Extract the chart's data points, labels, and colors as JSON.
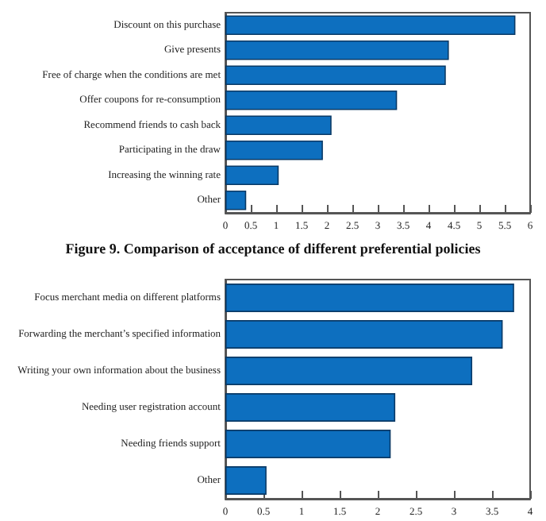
{
  "chart_data": [
    {
      "type": "bar",
      "orientation": "horizontal",
      "title": "Figure 9. Comparison of acceptance of different preferential policies",
      "categories": [
        "Discount on this purchase",
        "Give presents",
        "Free of charge when the conditions are met",
        "Offer coupons for re-consumption",
        "Recommend friends to cash back",
        "Participating in the draw",
        "Increasing the winning rate",
        "Other"
      ],
      "values": [
        5.71,
        4.4,
        4.34,
        3.38,
        2.09,
        1.92,
        1.05,
        0.41
      ],
      "color": "#0d6fbf",
      "xlim": [
        0,
        6
      ],
      "xticks": [
        0,
        0.5,
        1,
        1.5,
        2,
        2.5,
        3,
        3.5,
        4,
        4.5,
        5,
        5.5,
        6
      ],
      "grid": false
    },
    {
      "type": "bar",
      "orientation": "horizontal",
      "categories": [
        "Focus merchant media on different platforms",
        "Forwarding the merchant’s specified information",
        "Writing your own information about the business",
        "Needing user registration account",
        "Needing friends support",
        "Other"
      ],
      "values": [
        3.79,
        3.64,
        3.24,
        2.23,
        2.17,
        0.54
      ],
      "color": "#0d6fbf",
      "xlim": [
        0,
        4
      ],
      "xticks": [
        0,
        0.5,
        1,
        1.5,
        2,
        2.5,
        3,
        3.5,
        4
      ],
      "grid": false
    }
  ]
}
